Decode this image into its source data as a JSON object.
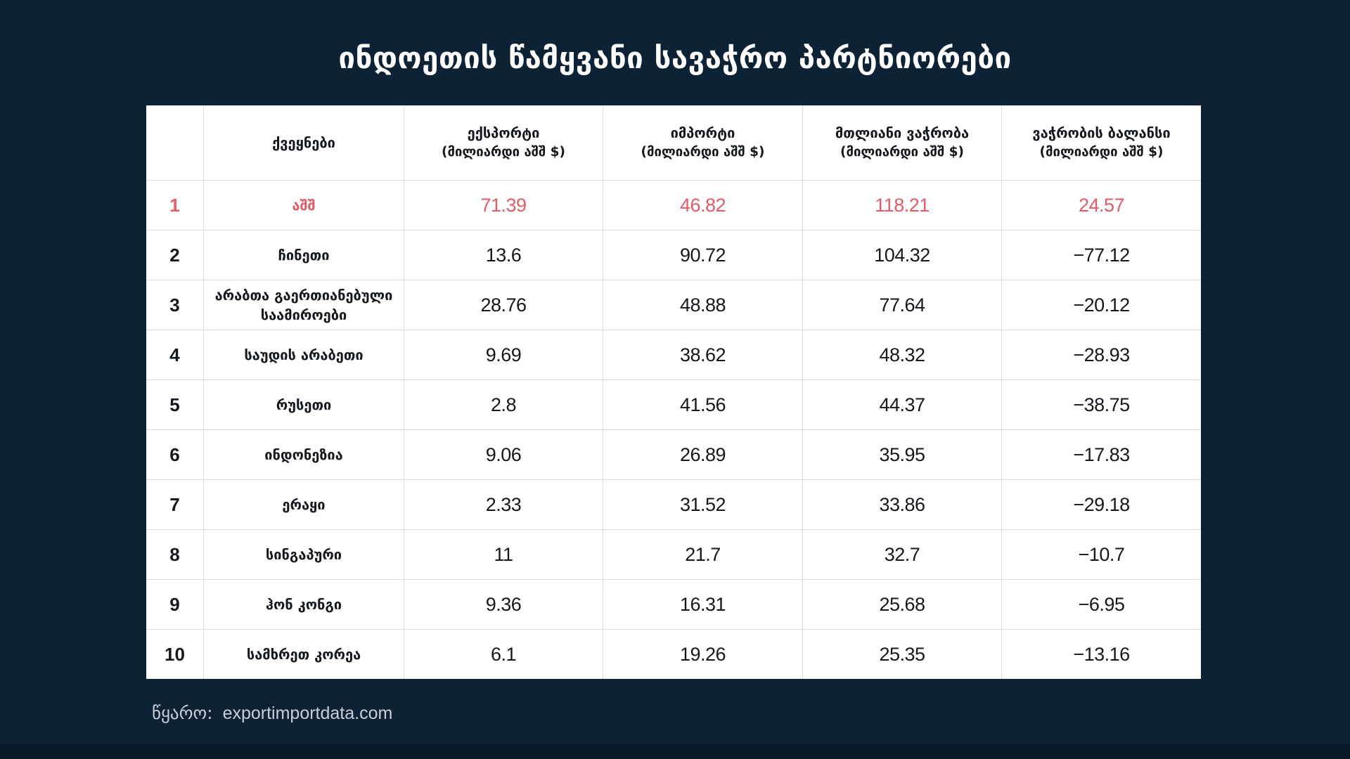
{
  "title": "ინდოეთის წამყვანი სავაჭრო პარტნიორები",
  "table": {
    "headers": {
      "rank": "",
      "country": "ქვეყნები",
      "export": "ექსპორტი",
      "import": "იმპორტი",
      "total": "მთლიანი ვაჭრობა",
      "balance": "ვაჭრობის ბალანსი",
      "unit": "(მილიარდი აშშ $)"
    },
    "rows": [
      {
        "rank": "1",
        "country": "აშშ",
        "export": "71.39",
        "import": "46.82",
        "total": "118.21",
        "balance": "24.57",
        "highlight": true
      },
      {
        "rank": "2",
        "country": "ჩინეთი",
        "export": "13.6",
        "import": "90.72",
        "total": "104.32",
        "balance": "−77.12",
        "highlight": false
      },
      {
        "rank": "3",
        "country": "არაბთა გაერთიანებული საამიროები",
        "export": "28.76",
        "import": "48.88",
        "total": "77.64",
        "balance": "−20.12",
        "highlight": false
      },
      {
        "rank": "4",
        "country": "საუდის არაბეთი",
        "export": "9.69",
        "import": "38.62",
        "total": "48.32",
        "balance": "−28.93",
        "highlight": false
      },
      {
        "rank": "5",
        "country": "რუსეთი",
        "export": "2.8",
        "import": "41.56",
        "total": "44.37",
        "balance": "−38.75",
        "highlight": false
      },
      {
        "rank": "6",
        "country": "ინდონეზია",
        "export": "9.06",
        "import": "26.89",
        "total": "35.95",
        "balance": "−17.83",
        "highlight": false
      },
      {
        "rank": "7",
        "country": "ერაყი",
        "export": "2.33",
        "import": "31.52",
        "total": "33.86",
        "balance": "−29.18",
        "highlight": false
      },
      {
        "rank": "8",
        "country": "სინგაპური",
        "export": "11",
        "import": "21.7",
        "total": "32.7",
        "balance": "−10.7",
        "highlight": false
      },
      {
        "rank": "9",
        "country": "ჰონ კონგი",
        "export": "9.36",
        "import": "16.31",
        "total": "25.68",
        "balance": "−6.95",
        "highlight": false
      },
      {
        "rank": "10",
        "country": "სამხრეთ კორეა",
        "export": "6.1",
        "import": "19.26",
        "total": "25.35",
        "balance": "−13.16",
        "highlight": false
      }
    ]
  },
  "source": {
    "label": "წყარო:",
    "value": "exportimportdata.com"
  },
  "colors": {
    "background": "#0d2235",
    "table_background": "#ffffff",
    "highlight": "#e25b66",
    "border": "#dcdcdc",
    "text": "#14181c",
    "source_text": "#c9cfd6"
  },
  "chart_data": {
    "type": "table",
    "title": "ინდოეთის წამყვანი სავაჭრო პარტნიორები",
    "columns": [
      "ქვეყნები",
      "ექსპორტი (მილიარდი აშშ $)",
      "იმპორტი (მილიარდი აშშ $)",
      "მთლიანი ვაჭრობა (მილიარდი აშშ $)",
      "ვაჭრობის ბალანსი (მილიარდი აშშ $)"
    ],
    "rows": [
      [
        "აშშ",
        71.39,
        46.82,
        118.21,
        24.57
      ],
      [
        "ჩინეთი",
        13.6,
        90.72,
        104.32,
        -77.12
      ],
      [
        "არაბთა გაერთიანებული საამიროები",
        28.76,
        48.88,
        77.64,
        -20.12
      ],
      [
        "საუდის არაბეთი",
        9.69,
        38.62,
        48.32,
        -28.93
      ],
      [
        "რუსეთი",
        2.8,
        41.56,
        44.37,
        -38.75
      ],
      [
        "ინდონეზია",
        9.06,
        26.89,
        35.95,
        -17.83
      ],
      [
        "ერაყი",
        2.33,
        31.52,
        33.86,
        -29.18
      ],
      [
        "სინგაპური",
        11,
        21.7,
        32.7,
        -10.7
      ],
      [
        "ჰონ კონგი",
        9.36,
        16.31,
        25.68,
        -6.95
      ],
      [
        "სამხრეთ კორეა",
        6.1,
        19.26,
        25.35,
        -13.16
      ]
    ],
    "source": "exportimportdata.com"
  }
}
